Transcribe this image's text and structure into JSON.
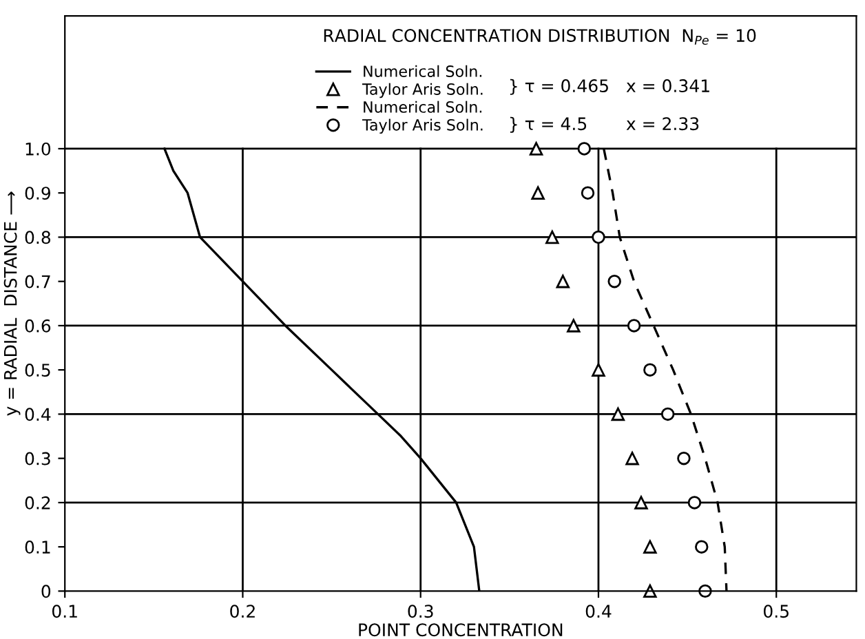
{
  "chart_data": {
    "type": "line",
    "title": "RADIAL CONCENTRATION DISTRIBUTION  N$_{Pe}$ = 10",
    "xlabel": "POINT CONCENTRATION",
    "ylabel": "y = RADIAL  DISTANCE ⟶",
    "xlim": [
      0.1,
      0.545
    ],
    "xticks": [
      0.1,
      0.2,
      0.3,
      0.4,
      0.5
    ],
    "ylim": [
      0,
      1.3
    ],
    "yticks": [
      0,
      0.1,
      0.2,
      0.3,
      0.4,
      0.5,
      0.6,
      0.7,
      0.8,
      0.9,
      {
        "value": 1.0,
        "label": "1.0"
      }
    ],
    "grid": false,
    "legend": "top",
    "ref_lines": [
      {
        "axis": "x",
        "value": 0.2
      },
      {
        "axis": "x",
        "value": 0.3
      },
      {
        "axis": "x",
        "value": 0.4
      },
      {
        "axis": "x",
        "value": 0.5
      },
      {
        "axis": "y",
        "value": 0.2
      },
      {
        "axis": "y",
        "value": 0.4
      },
      {
        "axis": "y",
        "value": 0.6
      },
      {
        "axis": "y",
        "value": 0.8
      },
      {
        "axis": "y",
        "value": 1.0
      }
    ],
    "annotations": [
      "} τ = 0.465   x = 0.341",
      "} τ = 4.5       x = 2.33"
    ],
    "series": [
      {
        "name": "Numerical Soln.",
        "color": "#000000",
        "line_style": "solid",
        "marker": "none",
        "x": [
          0.156,
          0.161,
          0.169,
          0.176,
          0.2,
          0.224,
          0.25,
          0.276,
          0.289,
          0.3,
          0.32,
          0.33,
          0.333
        ],
        "values": [
          1.0,
          0.95,
          0.9,
          0.8,
          0.7,
          0.6,
          0.5,
          0.4,
          0.35,
          0.3,
          0.2,
          0.1,
          0
        ]
      },
      {
        "name": "Taylor Aris Soln.",
        "type": "scatter",
        "color": "#000000",
        "marker": "triangle",
        "x": [
          0.365,
          0.366,
          0.374,
          0.38,
          0.386,
          0.4,
          0.411,
          0.419,
          0.424,
          0.429,
          0.429
        ],
        "values": [
          1.0,
          0.9,
          0.8,
          0.7,
          0.6,
          0.5,
          0.4,
          0.3,
          0.2,
          0.1,
          0
        ]
      },
      {
        "name": "Numerical Soln.",
        "color": "#000000",
        "line_style": "dashed",
        "marker": "none",
        "x": [
          0.403,
          0.408,
          0.412,
          0.42,
          0.431,
          0.442,
          0.452,
          0.46,
          0.467,
          0.471,
          0.472
        ],
        "values": [
          1.0,
          0.9,
          0.8,
          0.7,
          0.6,
          0.5,
          0.4,
          0.3,
          0.2,
          0.1,
          0
        ]
      },
      {
        "name": "Taylor Aris Soln.",
        "type": "scatter",
        "color": "#000000",
        "marker": "circle",
        "x": [
          0.392,
          0.394,
          0.4,
          0.409,
          0.42,
          0.429,
          0.439,
          0.448,
          0.454,
          0.458,
          0.46
        ],
        "values": [
          1.0,
          0.9,
          0.8,
          0.7,
          0.6,
          0.5,
          0.4,
          0.3,
          0.2,
          0.1,
          0
        ]
      }
    ]
  }
}
